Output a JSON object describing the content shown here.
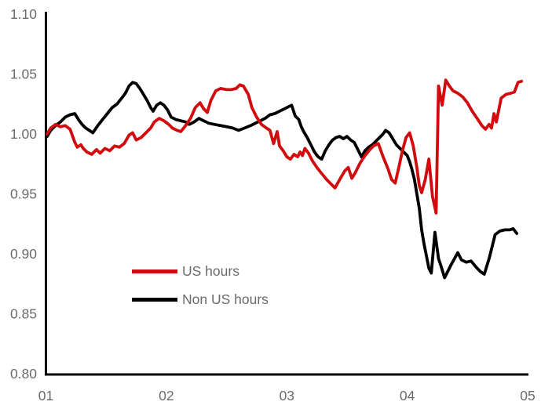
{
  "chart_data": {
    "type": "line",
    "title": "",
    "xlabel": "",
    "ylabel": "",
    "grid": false,
    "x_ticks": [
      "01",
      "02",
      "03",
      "04",
      "05"
    ],
    "x_range": [
      1,
      5
    ],
    "ylim": [
      0.8,
      1.1
    ],
    "y_ticks": [
      0.8,
      0.85,
      0.9,
      0.95,
      1.0,
      1.05,
      1.1
    ],
    "y_tick_labels": [
      "0.80",
      "0.85",
      "0.90",
      "0.95",
      "1.00",
      "1.05",
      "1.10"
    ],
    "axis_color": "#000000",
    "tick_label_color": "#6b6b6b",
    "legend_text_color": "#6b6b6b",
    "legend_position": "inside-lower-left",
    "legend": [
      {
        "label": "US hours",
        "color": "#d20b0e"
      },
      {
        "label": "Non US hours",
        "color": "#000000"
      }
    ],
    "series": [
      {
        "id": "non-us-hours",
        "name": "Non US hours",
        "color": "#000000",
        "points": [
          [
            1.01,
            0.998
          ],
          [
            1.04,
            1.003
          ],
          [
            1.08,
            1.007
          ],
          [
            1.12,
            1.01
          ],
          [
            1.16,
            1.014
          ],
          [
            1.2,
            1.016
          ],
          [
            1.24,
            1.017
          ],
          [
            1.27,
            1.012
          ],
          [
            1.3,
            1.008
          ],
          [
            1.33,
            1.005
          ],
          [
            1.36,
            1.003
          ],
          [
            1.39,
            1.001
          ],
          [
            1.43,
            1.007
          ],
          [
            1.47,
            1.012
          ],
          [
            1.51,
            1.017
          ],
          [
            1.55,
            1.022
          ],
          [
            1.59,
            1.025
          ],
          [
            1.63,
            1.03
          ],
          [
            1.66,
            1.034
          ],
          [
            1.69,
            1.04
          ],
          [
            1.72,
            1.043
          ],
          [
            1.75,
            1.042
          ],
          [
            1.78,
            1.038
          ],
          [
            1.81,
            1.033
          ],
          [
            1.84,
            1.028
          ],
          [
            1.87,
            1.022
          ],
          [
            1.89,
            1.019
          ],
          [
            1.92,
            1.024
          ],
          [
            1.95,
            1.026
          ],
          [
            1.98,
            1.024
          ],
          [
            2.01,
            1.02
          ],
          [
            2.04,
            1.014
          ],
          [
            2.08,
            1.012
          ],
          [
            2.12,
            1.011
          ],
          [
            2.16,
            1.01
          ],
          [
            2.19,
            1.008
          ],
          [
            2.23,
            1.01
          ],
          [
            2.27,
            1.013
          ],
          [
            2.31,
            1.011
          ],
          [
            2.35,
            1.009
          ],
          [
            2.4,
            1.008
          ],
          [
            2.45,
            1.007
          ],
          [
            2.5,
            1.006
          ],
          [
            2.55,
            1.005
          ],
          [
            2.6,
            1.003
          ],
          [
            2.65,
            1.005
          ],
          [
            2.7,
            1.007
          ],
          [
            2.74,
            1.009
          ],
          [
            2.78,
            1.011
          ],
          [
            2.82,
            1.013
          ],
          [
            2.86,
            1.016
          ],
          [
            2.9,
            1.017
          ],
          [
            2.94,
            1.019
          ],
          [
            2.98,
            1.021
          ],
          [
            3.02,
            1.023
          ],
          [
            3.04,
            1.024
          ],
          [
            3.07,
            1.015
          ],
          [
            3.1,
            1.012
          ],
          [
            3.12,
            1.006
          ],
          [
            3.14,
            1.002
          ],
          [
            3.17,
            0.997
          ],
          [
            3.2,
            0.991
          ],
          [
            3.23,
            0.985
          ],
          [
            3.26,
            0.981
          ],
          [
            3.29,
            0.979
          ],
          [
            3.32,
            0.986
          ],
          [
            3.35,
            0.991
          ],
          [
            3.38,
            0.995
          ],
          [
            3.41,
            0.997
          ],
          [
            3.44,
            0.998
          ],
          [
            3.47,
            0.996
          ],
          [
            3.5,
            0.998
          ],
          [
            3.53,
            0.995
          ],
          [
            3.56,
            0.993
          ],
          [
            3.59,
            0.987
          ],
          [
            3.62,
            0.981
          ],
          [
            3.65,
            0.986
          ],
          [
            3.68,
            0.989
          ],
          [
            3.71,
            0.991
          ],
          [
            3.74,
            0.994
          ],
          [
            3.77,
            0.997
          ],
          [
            3.8,
            1.0
          ],
          [
            3.82,
            1.003
          ],
          [
            3.85,
            1.001
          ],
          [
            3.88,
            0.996
          ],
          [
            3.91,
            0.991
          ],
          [
            3.94,
            0.988
          ],
          [
            3.97,
            0.985
          ],
          [
            4.0,
            0.982
          ],
          [
            4.02,
            0.977
          ],
          [
            4.04,
            0.97
          ],
          [
            4.06,
            0.962
          ],
          [
            4.08,
            0.95
          ],
          [
            4.1,
            0.938
          ],
          [
            4.12,
            0.92
          ],
          [
            4.14,
            0.908
          ],
          [
            4.16,
            0.898
          ],
          [
            4.18,
            0.888
          ],
          [
            4.2,
            0.884
          ],
          [
            4.23,
            0.918
          ],
          [
            4.26,
            0.896
          ],
          [
            4.28,
            0.89
          ],
          [
            4.31,
            0.88
          ],
          [
            4.36,
            0.89
          ],
          [
            4.42,
            0.901
          ],
          [
            4.45,
            0.895
          ],
          [
            4.49,
            0.893
          ],
          [
            4.53,
            0.894
          ],
          [
            4.58,
            0.888
          ],
          [
            4.61,
            0.885
          ],
          [
            4.64,
            0.883
          ],
          [
            4.68,
            0.896
          ],
          [
            4.71,
            0.908
          ],
          [
            4.73,
            0.916
          ],
          [
            4.77,
            0.919
          ],
          [
            4.81,
            0.92
          ],
          [
            4.85,
            0.92
          ],
          [
            4.88,
            0.921
          ],
          [
            4.91,
            0.917
          ]
        ]
      },
      {
        "id": "us-hours",
        "name": "US hours",
        "color": "#d20b0e",
        "points": [
          [
            1.01,
            1.0
          ],
          [
            1.04,
            1.005
          ],
          [
            1.08,
            1.008
          ],
          [
            1.12,
            1.006
          ],
          [
            1.16,
            1.007
          ],
          [
            1.2,
            1.004
          ],
          [
            1.24,
            0.993
          ],
          [
            1.26,
            0.989
          ],
          [
            1.29,
            0.991
          ],
          [
            1.31,
            0.988
          ],
          [
            1.34,
            0.985
          ],
          [
            1.38,
            0.983
          ],
          [
            1.42,
            0.987
          ],
          [
            1.45,
            0.984
          ],
          [
            1.49,
            0.988
          ],
          [
            1.53,
            0.986
          ],
          [
            1.57,
            0.99
          ],
          [
            1.61,
            0.989
          ],
          [
            1.65,
            0.992
          ],
          [
            1.69,
            0.999
          ],
          [
            1.72,
            1.001
          ],
          [
            1.75,
            0.995
          ],
          [
            1.79,
            0.997
          ],
          [
            1.83,
            1.001
          ],
          [
            1.87,
            1.005
          ],
          [
            1.9,
            1.01
          ],
          [
            1.94,
            1.013
          ],
          [
            1.98,
            1.011
          ],
          [
            2.02,
            1.008
          ],
          [
            2.05,
            1.005
          ],
          [
            2.09,
            1.003
          ],
          [
            2.12,
            1.002
          ],
          [
            2.16,
            1.007
          ],
          [
            2.2,
            1.013
          ],
          [
            2.24,
            1.022
          ],
          [
            2.28,
            1.026
          ],
          [
            2.31,
            1.021
          ],
          [
            2.34,
            1.018
          ],
          [
            2.37,
            1.028
          ],
          [
            2.41,
            1.036
          ],
          [
            2.45,
            1.038
          ],
          [
            2.5,
            1.037
          ],
          [
            2.54,
            1.037
          ],
          [
            2.58,
            1.038
          ],
          [
            2.61,
            1.041
          ],
          [
            2.64,
            1.04
          ],
          [
            2.68,
            1.033
          ],
          [
            2.71,
            1.022
          ],
          [
            2.75,
            1.014
          ],
          [
            2.79,
            1.008
          ],
          [
            2.83,
            1.005
          ],
          [
            2.86,
            1.003
          ],
          [
            2.89,
            0.992
          ],
          [
            2.92,
            1.002
          ],
          [
            2.94,
            0.99
          ],
          [
            2.97,
            0.986
          ],
          [
            3.0,
            0.981
          ],
          [
            3.03,
            0.979
          ],
          [
            3.06,
            0.983
          ],
          [
            3.09,
            0.981
          ],
          [
            3.11,
            0.985
          ],
          [
            3.13,
            0.982
          ],
          [
            3.15,
            0.988
          ],
          [
            3.18,
            0.984
          ],
          [
            3.21,
            0.978
          ],
          [
            3.25,
            0.972
          ],
          [
            3.29,
            0.967
          ],
          [
            3.33,
            0.962
          ],
          [
            3.37,
            0.958
          ],
          [
            3.4,
            0.955
          ],
          [
            3.44,
            0.962
          ],
          [
            3.48,
            0.969
          ],
          [
            3.51,
            0.972
          ],
          [
            3.54,
            0.963
          ],
          [
            3.57,
            0.968
          ],
          [
            3.61,
            0.976
          ],
          [
            3.65,
            0.982
          ],
          [
            3.69,
            0.987
          ],
          [
            3.72,
            0.99
          ],
          [
            3.76,
            0.992
          ],
          [
            3.8,
            0.981
          ],
          [
            3.84,
            0.971
          ],
          [
            3.87,
            0.962
          ],
          [
            3.9,
            0.959
          ],
          [
            3.93,
            0.972
          ],
          [
            3.96,
            0.986
          ],
          [
            3.99,
            0.997
          ],
          [
            4.02,
            1.001
          ],
          [
            4.05,
            0.99
          ],
          [
            4.08,
            0.972
          ],
          [
            4.1,
            0.957
          ],
          [
            4.12,
            0.951
          ],
          [
            4.15,
            0.962
          ],
          [
            4.18,
            0.979
          ],
          [
            4.21,
            0.948
          ],
          [
            4.24,
            0.934
          ],
          [
            4.26,
            1.04
          ],
          [
            4.29,
            1.024
          ],
          [
            4.32,
            1.045
          ],
          [
            4.35,
            1.04
          ],
          [
            4.38,
            1.036
          ],
          [
            4.42,
            1.034
          ],
          [
            4.46,
            1.031
          ],
          [
            4.5,
            1.026
          ],
          [
            4.54,
            1.019
          ],
          [
            4.58,
            1.013
          ],
          [
            4.62,
            1.007
          ],
          [
            4.65,
            1.004
          ],
          [
            4.68,
            1.008
          ],
          [
            4.7,
            1.005
          ],
          [
            4.72,
            1.017
          ],
          [
            4.74,
            1.01
          ],
          [
            4.78,
            1.03
          ],
          [
            4.82,
            1.033
          ],
          [
            4.86,
            1.034
          ],
          [
            4.89,
            1.035
          ],
          [
            4.92,
            1.043
          ],
          [
            4.95,
            1.044
          ]
        ]
      }
    ]
  }
}
